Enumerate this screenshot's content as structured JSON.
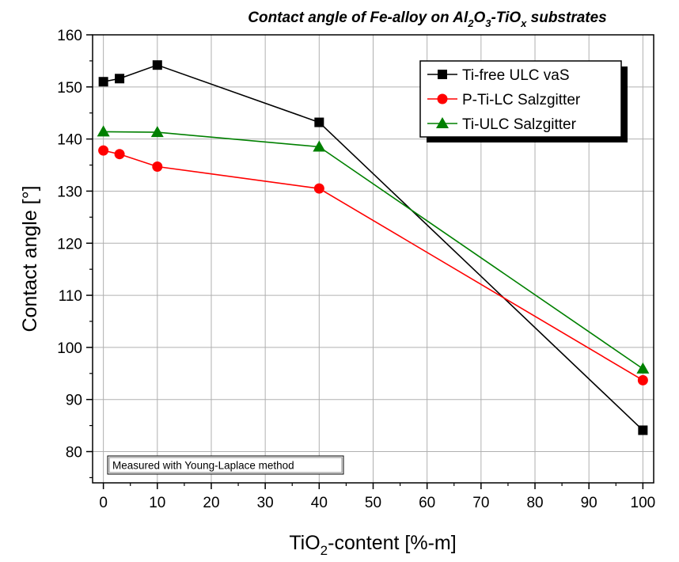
{
  "chart_data": {
    "type": "line",
    "title_parts": {
      "a": "Contact angle of Fe-alloy on Al",
      "s1": "2",
      "b": "O",
      "s2": "3",
      "c": "-TiO",
      "s3": "x",
      "d": " substrates"
    },
    "ylabel": "Contact angle [°]",
    "xlabel_parts": {
      "a": "TiO",
      "sub": "2",
      "b": "-content [%-m]"
    },
    "xlim": [
      -2,
      102
    ],
    "ylim": [
      74,
      160
    ],
    "xticks": [
      0,
      10,
      20,
      30,
      40,
      50,
      60,
      70,
      80,
      90,
      100
    ],
    "yticks": [
      80,
      90,
      100,
      110,
      120,
      130,
      140,
      150,
      160
    ],
    "grid": true,
    "legend_position": "top-right",
    "annotation": "Measured with Young-Laplace method",
    "series": [
      {
        "name": "Ti-free ULC vaS",
        "color": "#000000",
        "marker": "square",
        "x": [
          0,
          3,
          10,
          40,
          100
        ],
        "y": [
          151.0,
          151.6,
          154.2,
          143.2,
          84.1
        ]
      },
      {
        "name": "P-Ti-LC Salzgitter",
        "color": "#ff0000",
        "marker": "circle",
        "x": [
          0,
          3,
          10,
          40,
          100
        ],
        "y": [
          137.8,
          137.1,
          134.7,
          130.5,
          93.7
        ]
      },
      {
        "name": "Ti-ULC Salzgitter",
        "color": "#008000",
        "marker": "triangle",
        "x": [
          0,
          10,
          40,
          100
        ],
        "y": [
          141.4,
          141.3,
          138.5,
          95.9
        ]
      }
    ]
  }
}
